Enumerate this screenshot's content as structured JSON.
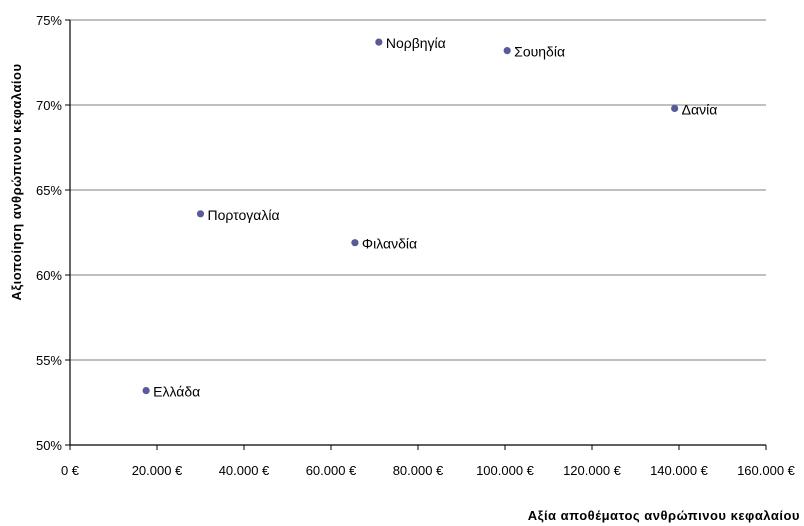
{
  "chart_data": {
    "type": "scatter",
    "title": "",
    "xlabel": "Αξία αποθέματος ανθρώπινου κεφαλαίου",
    "ylabel": "Αξιοποίηση ανθρώπινου κεφαλαίου",
    "xlim": [
      0,
      160000
    ],
    "ylim": [
      50,
      75
    ],
    "x_ticks": [
      {
        "value": 0,
        "label": "0 €"
      },
      {
        "value": 20000,
        "label": "20.000 €"
      },
      {
        "value": 40000,
        "label": "40.000 €"
      },
      {
        "value": 60000,
        "label": "60.000 €"
      },
      {
        "value": 80000,
        "label": "80.000 €"
      },
      {
        "value": 100000,
        "label": "100.000 €"
      },
      {
        "value": 120000,
        "label": "120.000 €"
      },
      {
        "value": 140000,
        "label": "140.000 €"
      },
      {
        "value": 160000,
        "label": "160.000 €"
      }
    ],
    "y_ticks": [
      {
        "value": 50,
        "label": "50%"
      },
      {
        "value": 55,
        "label": "55%"
      },
      {
        "value": 60,
        "label": "60%"
      },
      {
        "value": 65,
        "label": "65%"
      },
      {
        "value": 70,
        "label": "70%"
      },
      {
        "value": 75,
        "label": "75%"
      }
    ],
    "grid": true,
    "legend": "none",
    "marker_color": "#5a5a9a",
    "points": [
      {
        "label": "Νορβηγία",
        "x": 71000,
        "y": 73.7
      },
      {
        "label": "Σουηδία",
        "x": 100500,
        "y": 73.2
      },
      {
        "label": "Δανία",
        "x": 139000,
        "y": 69.8
      },
      {
        "label": "Πορτογαλία",
        "x": 30000,
        "y": 63.6
      },
      {
        "label": "Φιλανδία",
        "x": 65500,
        "y": 61.9
      },
      {
        "label": "Ελλάδα",
        "x": 17500,
        "y": 53.2
      }
    ]
  }
}
